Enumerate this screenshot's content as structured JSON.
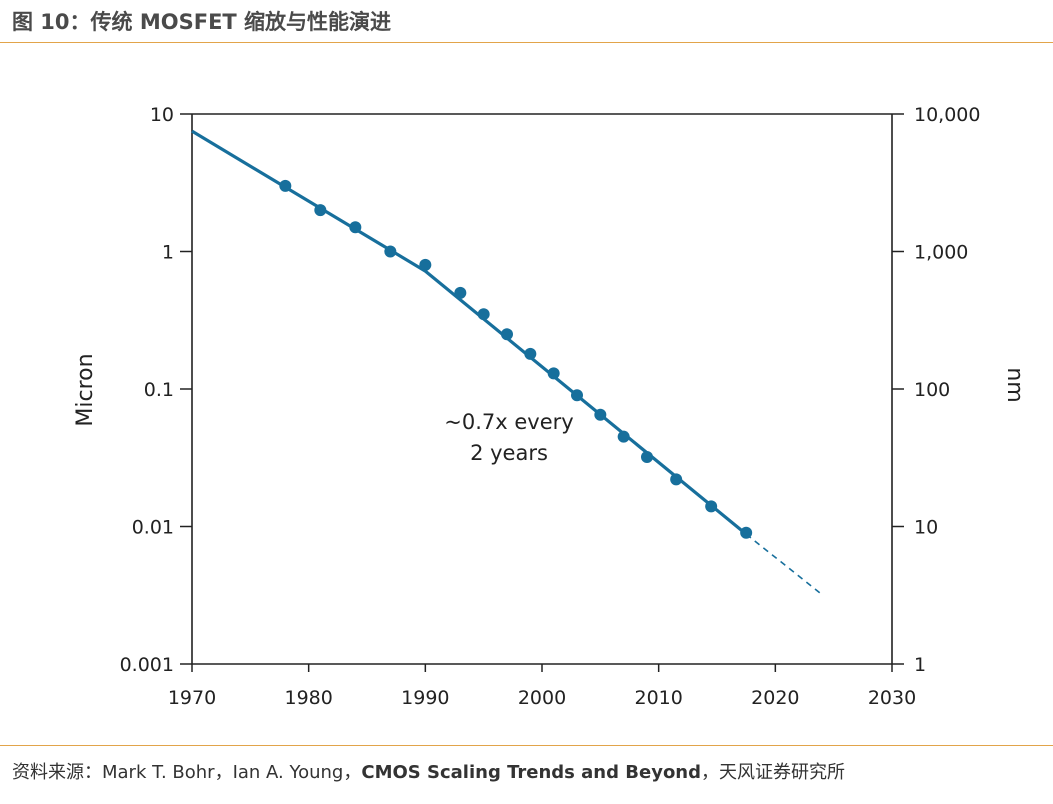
{
  "header": {
    "title": "图 10：传统 MOSFET 缩放与性能演进"
  },
  "footer": {
    "source_prefix": "资料来源：Mark T. Bohr，Ian A. Young，",
    "source_bold": "CMOS Scaling Trends and Beyond",
    "source_suffix": "，天风证券研究所"
  },
  "colors": {
    "series": "#176f9c",
    "accent_rule": "#e2a44a",
    "axis": "#222222"
  },
  "chart_data": {
    "type": "scatter",
    "scale": "log-y",
    "xlim": [
      1970,
      2030
    ],
    "ylim": [
      0.001,
      10
    ],
    "x_ticks": [
      "1970",
      "1980",
      "1990",
      "2000",
      "2010",
      "2020",
      "2030"
    ],
    "y_ticks_left": [
      "10",
      "1",
      "0.1",
      "0.01",
      "0.001"
    ],
    "y_ticks_right": [
      "10,000",
      "1,000",
      "100",
      "10",
      "1"
    ],
    "ylabel_left": "Micron",
    "ylabel_right": "nm",
    "annotation": [
      "~0.7x every",
      "2 years"
    ],
    "grid": false,
    "series": [
      {
        "points": [
          [
            1978,
            3.0
          ],
          [
            1981,
            2.0
          ],
          [
            1984,
            1.5
          ],
          [
            1987,
            1.0
          ],
          [
            1990,
            0.8
          ],
          [
            1993,
            0.5
          ],
          [
            1995,
            0.35
          ],
          [
            1997,
            0.25
          ],
          [
            1999,
            0.18
          ],
          [
            2001,
            0.13
          ],
          [
            2003,
            0.09
          ],
          [
            2005,
            0.065
          ],
          [
            2007,
            0.045
          ],
          [
            2009,
            0.032
          ],
          [
            2011.5,
            0.022
          ],
          [
            2014.5,
            0.014
          ],
          [
            2017.5,
            0.009
          ]
        ],
        "trend_solid": [
          [
            1970,
            7.5
          ],
          [
            1990,
            0.72
          ],
          [
            2017.5,
            0.0088
          ]
        ],
        "trend_dashed": [
          [
            2017.5,
            0.0088
          ],
          [
            2024,
            0.0032
          ]
        ]
      }
    ]
  }
}
